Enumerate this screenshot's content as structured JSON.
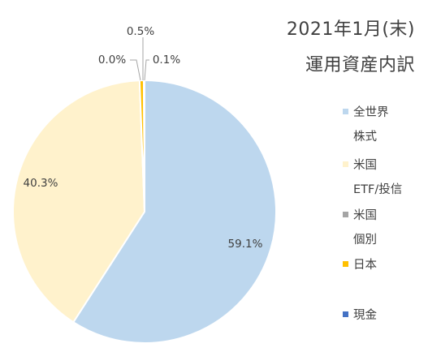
{
  "title": {
    "line1": "2021年1月(末)",
    "line2": "運用資産内訳"
  },
  "colors": {
    "全世界株式": "#bdd7ee",
    "米国ETF/投信": "#fff2cc",
    "米国個別": "#a5a5a5",
    "日本": "#ffc000",
    "現金": "#4472c4",
    "label_text": "#404040",
    "leader_line": "#a6a6a6"
  },
  "legend": [
    {
      "key": "全世界株式",
      "lines": [
        "全世界",
        "株式"
      ]
    },
    {
      "key": "米国ETF/投信",
      "lines": [
        "米国",
        "ETF/投信"
      ]
    },
    {
      "key": "米国個別",
      "lines": [
        "米国",
        "個別"
      ]
    },
    {
      "key": "日本",
      "lines": [
        "日本"
      ]
    },
    {
      "key": "現金",
      "lines": [
        "現金"
      ]
    }
  ],
  "chart_data": {
    "type": "pie",
    "title": "2021年1月(末) 運用資産内訳",
    "categories": [
      "全世界株式",
      "米国ETF/投信",
      "米国個別",
      "日本",
      "現金"
    ],
    "values": [
      59.1,
      40.3,
      0.0,
      0.5,
      0.1
    ],
    "data_labels": [
      "59.1%",
      "40.3%",
      "0.0%",
      "0.5%",
      "0.1%"
    ],
    "legend_position": "right",
    "start_angle_deg": 0,
    "direction": "clockwise"
  }
}
